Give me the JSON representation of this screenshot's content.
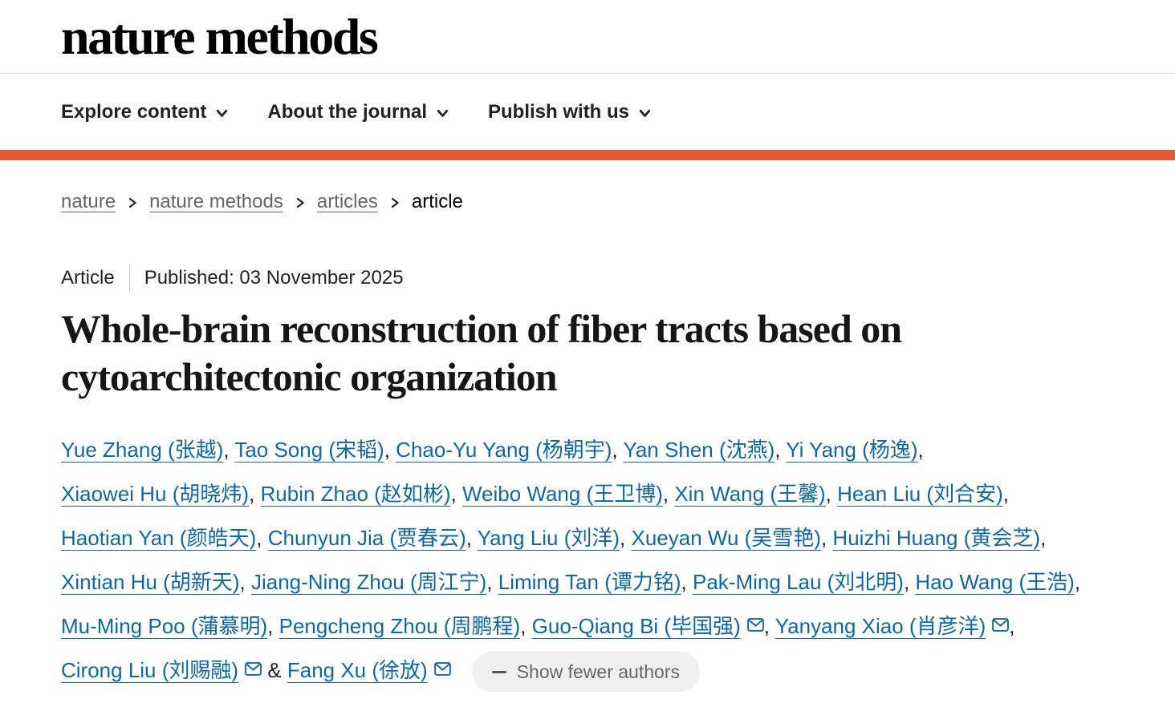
{
  "colors": {
    "accent_bar": "#e55831",
    "link_blue": "#0c69a5",
    "breadcrumb_gray": "#666666"
  },
  "header": {
    "logo": "nature methods",
    "nav": [
      {
        "label": "Explore content"
      },
      {
        "label": "About the journal"
      },
      {
        "label": "Publish with us"
      }
    ]
  },
  "breadcrumb": {
    "items": [
      {
        "label": "nature",
        "link": true
      },
      {
        "label": "nature methods",
        "link": true
      },
      {
        "label": "articles",
        "link": true
      },
      {
        "label": "article",
        "link": false
      }
    ]
  },
  "article": {
    "type_label": "Article",
    "published_label": "Published: 03 November 2025",
    "title": "Whole-brain reconstruction of fiber tracts based on cytoarchitectonic organization"
  },
  "authors": {
    "list": [
      {
        "name": "Yue Zhang (张越)"
      },
      {
        "name": "Tao Song (宋韬)"
      },
      {
        "name": "Chao-Yu Yang (杨朝宇)"
      },
      {
        "name": "Yan Shen (沈燕)"
      },
      {
        "name": "Yi Yang (杨逸)"
      },
      {
        "name": "Xiaowei Hu (胡晓炜)"
      },
      {
        "name": "Rubin Zhao (赵如彬)"
      },
      {
        "name": "Weibo Wang (王卫博)"
      },
      {
        "name": "Xin Wang (王馨)"
      },
      {
        "name": "Hean Liu (刘合安)"
      },
      {
        "name": "Haotian Yan (颜皓天)"
      },
      {
        "name": "Chunyun Jia (贾春云)"
      },
      {
        "name": "Yang Liu (刘洋)"
      },
      {
        "name": "Xueyan Wu (吴雪艳)"
      },
      {
        "name": "Huizhi Huang (黄会芝)"
      },
      {
        "name": "Xintian Hu (胡新天)"
      },
      {
        "name": "Jiang-Ning Zhou (周江宁)"
      },
      {
        "name": "Liming Tan (谭力铭)"
      },
      {
        "name": "Pak-Ming Lau (刘北明)"
      },
      {
        "name": "Hao Wang (王浩)"
      },
      {
        "name": "Mu-Ming Poo (蒲慕明)"
      },
      {
        "name": "Pengcheng Zhou (周鹏程)"
      },
      {
        "name": "Guo-Qiang Bi (毕国强)",
        "email": true
      },
      {
        "name": "Yanyang Xiao (肖彦洋)",
        "email": true
      },
      {
        "name": "Cirong Liu (刘赐融)",
        "email": true
      },
      {
        "name": "Fang Xu (徐放)",
        "email": true
      }
    ],
    "show_fewer_label": "Show fewer authors"
  }
}
